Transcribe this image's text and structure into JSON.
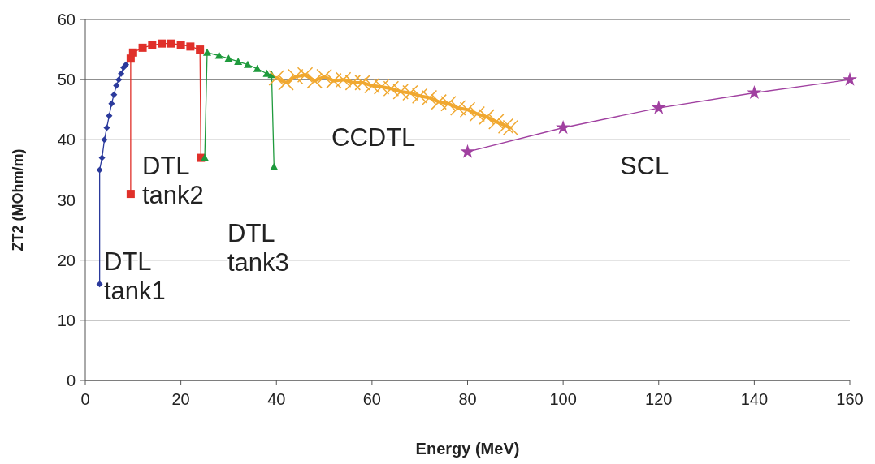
{
  "chart_data": {
    "type": "line",
    "xlabel": "Energy (MeV)",
    "ylabel": "ZT2 (MOhm/m)",
    "xlim": [
      0,
      160
    ],
    "ylim": [
      0,
      60
    ],
    "xticks": [
      0,
      20,
      40,
      60,
      80,
      100,
      120,
      140,
      160
    ],
    "yticks": [
      0,
      10,
      20,
      30,
      40,
      50,
      60
    ],
    "grid": "y",
    "series": [
      {
        "name": "DTL tank1",
        "color": "#2b3a9c",
        "marker": "diamond",
        "x": [
          3,
          3,
          3.5,
          4,
          4.5,
          5,
          5.5,
          6,
          6.5,
          7,
          7.5,
          8,
          8.5
        ],
        "values": [
          16,
          35,
          37,
          40,
          42,
          44,
          46,
          47.5,
          49,
          50,
          51,
          52,
          52.5
        ]
      },
      {
        "name": "DTL tank2",
        "color": "#e0302a",
        "marker": "square",
        "x": [
          9.5,
          9.5,
          10,
          12,
          14,
          16,
          18,
          20,
          22,
          24,
          24.2
        ],
        "values": [
          31,
          53.5,
          54.5,
          55.3,
          55.7,
          56,
          56,
          55.8,
          55.5,
          55,
          37
        ]
      },
      {
        "name": "DTL tank3",
        "color": "#1e9a3c",
        "marker": "triangle",
        "x": [
          25,
          25.5,
          28,
          30,
          32,
          34,
          36,
          38,
          39,
          39.5
        ],
        "values": [
          37,
          54.5,
          54,
          53.5,
          53,
          52.5,
          51.8,
          51,
          50.8,
          35.5
        ]
      },
      {
        "name": "CCDTL",
        "color": "#f0a830",
        "marker": "cross",
        "x": [
          40,
          42,
          44,
          46,
          48,
          50,
          52,
          54,
          56,
          58,
          60,
          62,
          64,
          66,
          68,
          70,
          72,
          74,
          76,
          78,
          80,
          82,
          84,
          86,
          88,
          89
        ],
        "values": [
          50.3,
          49.5,
          50.5,
          50.8,
          49.8,
          50.5,
          49.8,
          50,
          49.5,
          49.5,
          49,
          48.8,
          48.5,
          48,
          47.8,
          47.3,
          47,
          46.3,
          46,
          45.3,
          45,
          44.3,
          43.8,
          43,
          42.3,
          42
        ]
      },
      {
        "name": "SCL",
        "color": "#a040a0",
        "marker": "star",
        "x": [
          80,
          100,
          120,
          140,
          160
        ],
        "values": [
          38,
          42,
          45.3,
          47.8,
          50
        ]
      }
    ]
  }
}
